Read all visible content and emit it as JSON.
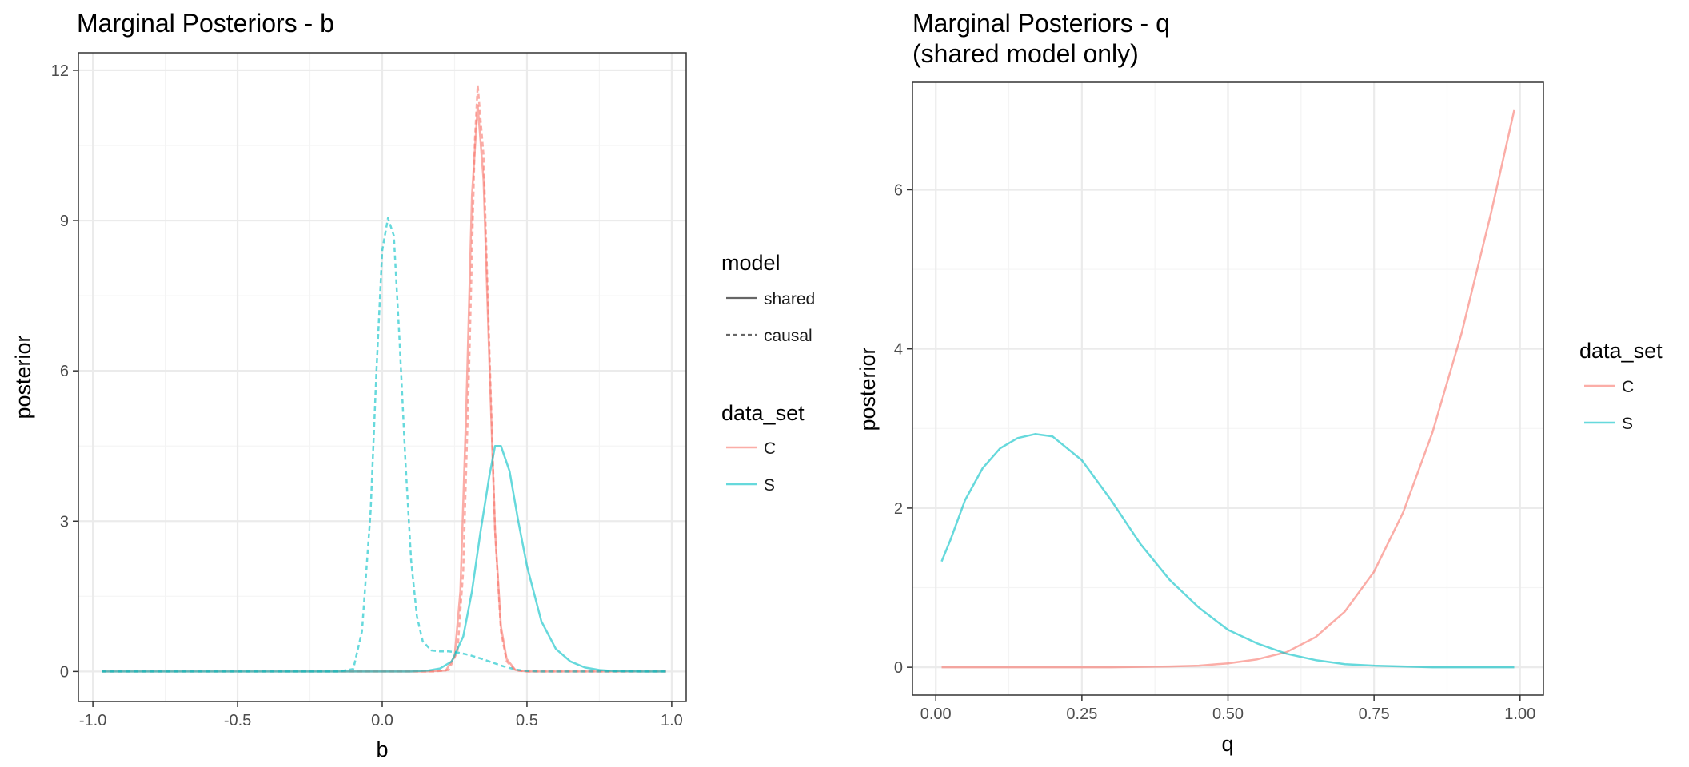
{
  "colors": {
    "C": "#F8766D",
    "S": "#00BFC4",
    "grid_major": "#EBEBEB",
    "grid_minor": "#F4F4F4",
    "border": "#333333"
  },
  "chart_data": [
    {
      "type": "line",
      "title": "Marginal Posteriors - b",
      "subtitle": "",
      "xlabel": "b",
      "ylabel": "posterior",
      "xlim": [
        -1.05,
        1.05
      ],
      "ylim": [
        -0.6,
        12.35
      ],
      "xticks": [
        -1.0,
        -0.5,
        0.0,
        0.5,
        1.0
      ],
      "xtick_labels": [
        "-1.0",
        "-0.5",
        "0.0",
        "0.5",
        "1.0"
      ],
      "yticks": [
        0,
        3,
        6,
        9,
        12
      ],
      "ytick_labels": [
        "0",
        "3",
        "6",
        "9",
        "12"
      ],
      "grid": true,
      "legend": {
        "placement": "right",
        "groups": [
          {
            "title": "model",
            "entries": [
              {
                "label": "shared",
                "linetype": "solid"
              },
              {
                "label": "causal",
                "linetype": "dashed"
              }
            ]
          },
          {
            "title": "data_set",
            "entries": [
              {
                "label": "C",
                "color": "#F8766D"
              },
              {
                "label": "S",
                "color": "#00BFC4"
              }
            ]
          }
        ]
      },
      "series": [
        {
          "data_set": "C",
          "model": "shared",
          "x": [
            -0.97,
            0.15,
            0.22,
            0.25,
            0.27,
            0.29,
            0.31,
            0.33,
            0.35,
            0.37,
            0.39,
            0.41,
            0.43,
            0.46,
            0.5,
            0.98
          ],
          "y": [
            0,
            0,
            0.02,
            0.3,
            1.6,
            5.2,
            9.5,
            11.3,
            9.8,
            6.2,
            2.8,
            0.9,
            0.25,
            0.03,
            0,
            0
          ]
        },
        {
          "data_set": "C",
          "model": "causal",
          "x": [
            -0.97,
            0.18,
            0.23,
            0.26,
            0.28,
            0.3,
            0.32,
            0.33,
            0.35,
            0.37,
            0.39,
            0.41,
            0.43,
            0.46,
            0.5,
            0.98
          ],
          "y": [
            0,
            0,
            0.03,
            0.4,
            2.0,
            6.0,
            10.6,
            11.7,
            10.3,
            6.5,
            2.8,
            0.8,
            0.2,
            0.02,
            0,
            0
          ]
        },
        {
          "data_set": "S",
          "model": "shared",
          "x": [
            -0.97,
            0.1,
            0.16,
            0.2,
            0.24,
            0.28,
            0.31,
            0.34,
            0.37,
            0.39,
            0.41,
            0.44,
            0.47,
            0.5,
            0.55,
            0.6,
            0.65,
            0.7,
            0.75,
            0.8,
            0.9,
            0.98
          ],
          "y": [
            0,
            0,
            0.02,
            0.06,
            0.2,
            0.7,
            1.6,
            2.8,
            3.9,
            4.5,
            4.5,
            4.0,
            3.0,
            2.1,
            1.0,
            0.45,
            0.2,
            0.08,
            0.03,
            0.01,
            0,
            0
          ]
        },
        {
          "data_set": "S",
          "model": "causal",
          "x": [
            -0.97,
            -0.15,
            -0.1,
            -0.07,
            -0.04,
            -0.02,
            0.0,
            0.02,
            0.04,
            0.06,
            0.08,
            0.1,
            0.12,
            0.14,
            0.17,
            0.2,
            0.23,
            0.26,
            0.3,
            0.34,
            0.38,
            0.42,
            0.46,
            0.5,
            0.55,
            0.98
          ],
          "y": [
            0,
            0,
            0.05,
            0.8,
            3.2,
            6.0,
            8.4,
            9.05,
            8.7,
            6.6,
            4.2,
            2.2,
            1.1,
            0.6,
            0.42,
            0.4,
            0.4,
            0.38,
            0.33,
            0.26,
            0.18,
            0.1,
            0.04,
            0.01,
            0,
            0
          ]
        }
      ]
    },
    {
      "type": "line",
      "title": "Marginal Posteriors - q",
      "subtitle": "(shared model only)",
      "xlabel": "q",
      "ylabel": "posterior",
      "xlim": [
        -0.04,
        1.04
      ],
      "ylim": [
        -0.35,
        7.35
      ],
      "xticks": [
        0.0,
        0.25,
        0.5,
        0.75,
        1.0
      ],
      "xtick_labels": [
        "0.00",
        "0.25",
        "0.50",
        "0.75",
        "1.00"
      ],
      "yticks": [
        0,
        2,
        4,
        6
      ],
      "ytick_labels": [
        "0",
        "2",
        "4",
        "6"
      ],
      "grid": true,
      "legend": {
        "placement": "right",
        "groups": [
          {
            "title": "data_set",
            "entries": [
              {
                "label": "C",
                "color": "#F8766D"
              },
              {
                "label": "S",
                "color": "#00BFC4"
              }
            ]
          }
        ]
      },
      "series": [
        {
          "data_set": "C",
          "model": "shared",
          "x": [
            0.01,
            0.3,
            0.4,
            0.45,
            0.5,
            0.55,
            0.6,
            0.65,
            0.7,
            0.75,
            0.8,
            0.85,
            0.9,
            0.95,
            0.99
          ],
          "y": [
            0,
            0,
            0.01,
            0.02,
            0.05,
            0.1,
            0.19,
            0.38,
            0.7,
            1.2,
            1.95,
            2.95,
            4.2,
            5.7,
            7.0
          ]
        },
        {
          "data_set": "S",
          "model": "shared",
          "x": [
            0.01,
            0.025,
            0.05,
            0.08,
            0.11,
            0.14,
            0.17,
            0.2,
            0.25,
            0.3,
            0.35,
            0.4,
            0.45,
            0.5,
            0.55,
            0.6,
            0.65,
            0.7,
            0.75,
            0.8,
            0.85,
            0.9,
            0.95,
            0.99
          ],
          "y": [
            1.33,
            1.6,
            2.1,
            2.5,
            2.75,
            2.88,
            2.93,
            2.9,
            2.6,
            2.1,
            1.55,
            1.1,
            0.75,
            0.47,
            0.3,
            0.17,
            0.09,
            0.04,
            0.02,
            0.01,
            0,
            0,
            0,
            0
          ]
        }
      ]
    }
  ]
}
